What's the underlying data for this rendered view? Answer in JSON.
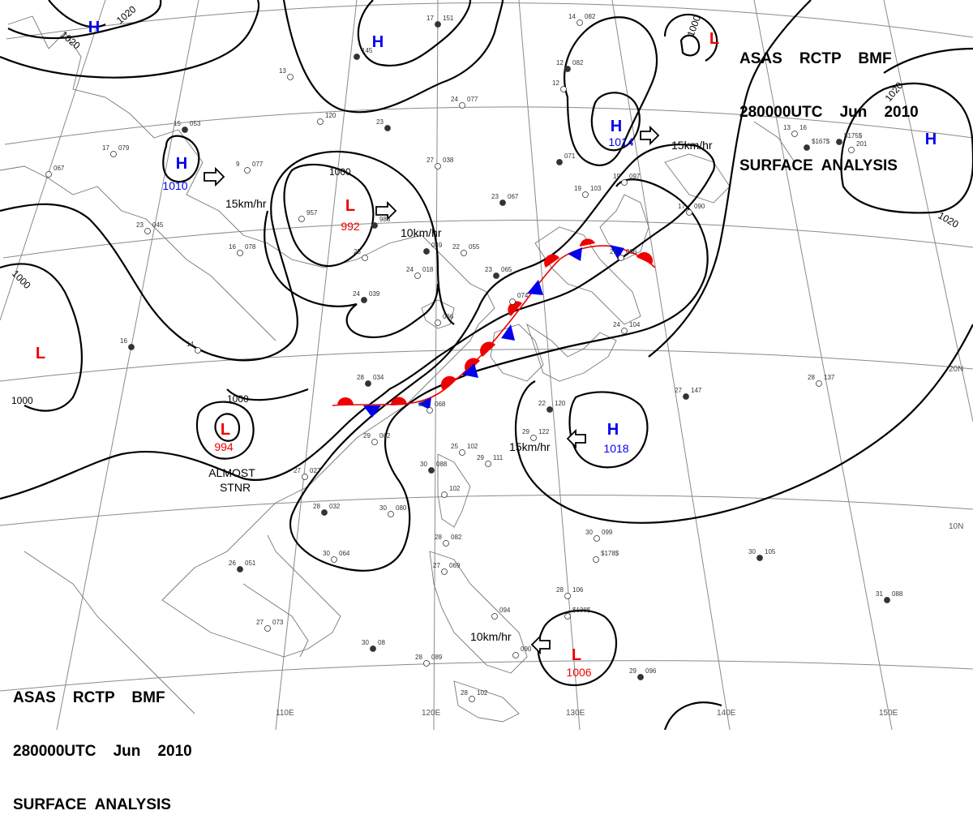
{
  "header_top_right": {
    "line1": "ASAS    RCTP    BMF",
    "line2": "280000UTC    Jun    2010",
    "line3": "SURFACE  ANALYSIS"
  },
  "header_bottom_left": {
    "line1": "ASAS    RCTP    BMF",
    "line2": "280000UTC    Jun    2010",
    "line3": "SURFACE  ANALYSIS"
  },
  "colors": {
    "high": "#0000ee",
    "low": "#ee0000",
    "warm_front": "#ee0000",
    "cold_front": "#0000ee",
    "isobar": "#000000",
    "grid": "#888888"
  },
  "longitude_labels": [
    "110E",
    "120E",
    "130E",
    "140E",
    "150E"
  ],
  "latitude_labels": [
    "20N",
    "10N"
  ],
  "pressure_centers": [
    {
      "type": "H",
      "value": "1010"
    },
    {
      "type": "L",
      "value": "992"
    },
    {
      "type": "L",
      "value": "994"
    },
    {
      "type": "H",
      "value": "1014"
    },
    {
      "type": "H",
      "value": "1018"
    },
    {
      "type": "L",
      "value": "1006"
    },
    {
      "type": "H",
      "value": ""
    },
    {
      "type": "H",
      "value": ""
    },
    {
      "type": "L",
      "value": ""
    },
    {
      "type": "H",
      "value": ""
    },
    {
      "type": "L",
      "value": ""
    }
  ],
  "isobar_labels": [
    "1020",
    "1020",
    "1000",
    "1000",
    "1000",
    "1000",
    "1020",
    "1020",
    "1000"
  ],
  "motions": [
    "15km/hr",
    "10km/hr",
    "15km/hr",
    "15km/hr",
    "10km/hr"
  ],
  "notes": {
    "stationary_line1": "ALMOST",
    "stationary_line2": "STNR"
  },
  "station_plots": [
    {
      "t": "17",
      "p": "151"
    },
    {
      "t": "14",
      "p": "082"
    },
    {
      "t": "13",
      "p": ""
    },
    {
      "t": "15",
      "p": "053"
    },
    {
      "t": "17",
      "p": "079"
    },
    {
      "t": "",
      "p": "067"
    },
    {
      "t": "",
      "p": "145"
    },
    {
      "t": "",
      "p": "120"
    },
    {
      "t": "24",
      "p": "077"
    },
    {
      "t": "23",
      "p": ""
    },
    {
      "t": "9",
      "p": "077"
    },
    {
      "t": "27",
      "p": "038"
    },
    {
      "t": "12",
      "p": "082"
    },
    {
      "t": "12",
      "p": ""
    },
    {
      "t": "13",
      "p": "16"
    },
    {
      "t": "",
      "p": "071"
    },
    {
      "t": "19",
      "p": "103"
    },
    {
      "t": "19",
      "p": "097"
    },
    {
      "t": "23",
      "p": "067"
    },
    {
      "t": "17",
      "p": "090"
    },
    {
      "t": "",
      "p": "957"
    },
    {
      "t": "",
      "p": "986"
    },
    {
      "t": "23",
      "p": "045"
    },
    {
      "t": "22",
      "p": "055"
    },
    {
      "t": "",
      "p": "049"
    },
    {
      "t": "16",
      "p": "078"
    },
    {
      "t": "25",
      "p": ""
    },
    {
      "t": "23",
      "p": "065"
    },
    {
      "t": "24",
      "p": "018"
    },
    {
      "t": "21",
      "p": "086"
    },
    {
      "t": "24",
      "p": "039"
    },
    {
      "t": "",
      "p": "074"
    },
    {
      "t": "",
      "p": "066"
    },
    {
      "t": "16",
      "p": ""
    },
    {
      "t": "14",
      "p": ""
    },
    {
      "t": "24",
      "p": "104"
    },
    {
      "t": "28",
      "p": "034"
    },
    {
      "t": "25",
      "p": "068"
    },
    {
      "t": "28",
      "p": "137"
    },
    {
      "t": "27",
      "p": "147"
    },
    {
      "t": "29",
      "p": "062"
    },
    {
      "t": "25",
      "p": "102"
    },
    {
      "t": "22",
      "p": "120"
    },
    {
      "t": "29",
      "p": "122"
    },
    {
      "t": "27",
      "p": "027"
    },
    {
      "t": "30",
      "p": "088"
    },
    {
      "t": "29",
      "p": "111"
    },
    {
      "t": "",
      "p": "102"
    },
    {
      "t": "28",
      "p": "032"
    },
    {
      "t": "30",
      "p": "080"
    },
    {
      "t": "30",
      "p": "099"
    },
    {
      "t": "30",
      "p": "105"
    },
    {
      "t": "30",
      "p": "064"
    },
    {
      "t": "28",
      "p": "082"
    },
    {
      "t": "26",
      "p": "051"
    },
    {
      "t": "27",
      "p": "069"
    },
    {
      "t": "28",
      "p": "106"
    },
    {
      "t": "31",
      "p": "088"
    },
    {
      "t": "27",
      "p": "073"
    },
    {
      "t": "",
      "p": "094"
    },
    {
      "t": "30",
      "p": "08"
    },
    {
      "t": "28",
      "p": "089"
    },
    {
      "t": "",
      "p": "090"
    },
    {
      "t": "29",
      "p": "096"
    },
    {
      "t": "28",
      "p": "102"
    },
    {
      "t": "",
      "p": "201"
    },
    {
      "t": "",
      "p": "$175$"
    },
    {
      "t": "",
      "p": "$178$"
    },
    {
      "t": "",
      "p": "$138$"
    },
    {
      "t": "",
      "p": "$167$"
    }
  ]
}
